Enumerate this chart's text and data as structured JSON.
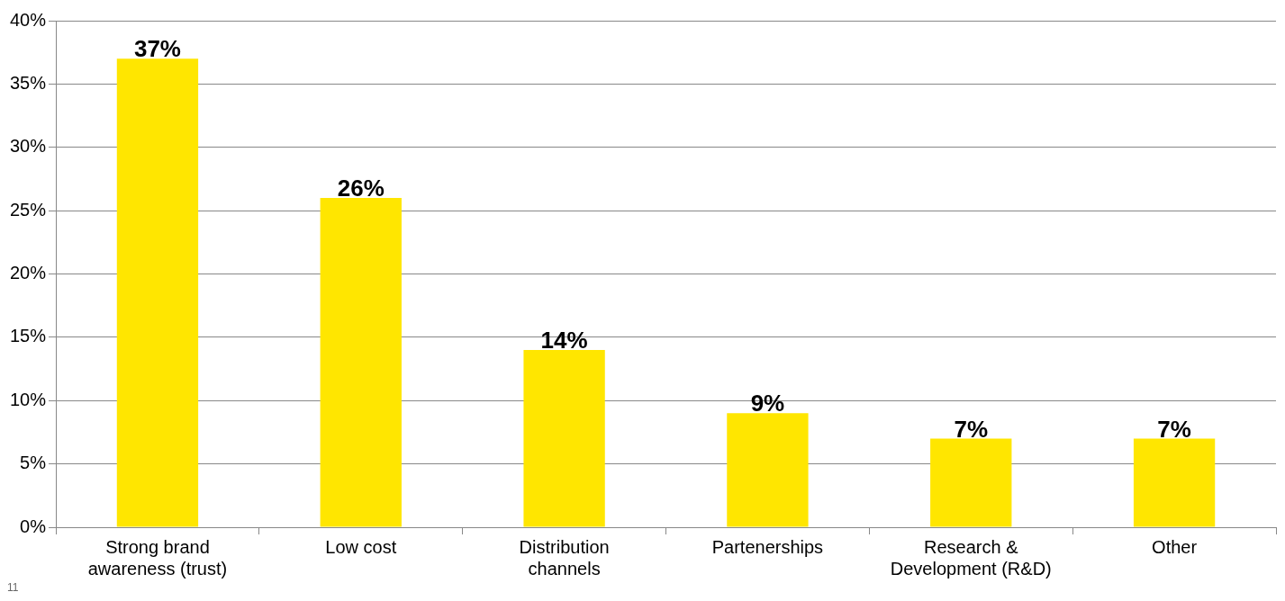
{
  "chart_data": {
    "type": "bar",
    "categories": [
      "Strong brand awareness (trust)",
      "Low cost",
      "Distribution channels",
      "Partenerships",
      "Research & Development (R&D)",
      "Other"
    ],
    "values": [
      37,
      26,
      14,
      9,
      7,
      7
    ],
    "value_labels": [
      "37%",
      "26%",
      "14%",
      "9%",
      "7%",
      "7%"
    ],
    "color": "#ffe600",
    "ylim": [
      0,
      40
    ],
    "yticks": [
      {
        "value": 0,
        "label": "0%"
      },
      {
        "value": 5,
        "label": "5%"
      },
      {
        "value": 10,
        "label": "10%"
      },
      {
        "value": 15,
        "label": "15%"
      },
      {
        "value": 20,
        "label": "20%"
      },
      {
        "value": 25,
        "label": "25%"
      },
      {
        "value": 30,
        "label": "30%"
      },
      {
        "value": 35,
        "label": "35%"
      },
      {
        "value": 40,
        "label": "40%"
      }
    ],
    "grid": "y",
    "legend": false,
    "annotations": [
      "11"
    ]
  }
}
